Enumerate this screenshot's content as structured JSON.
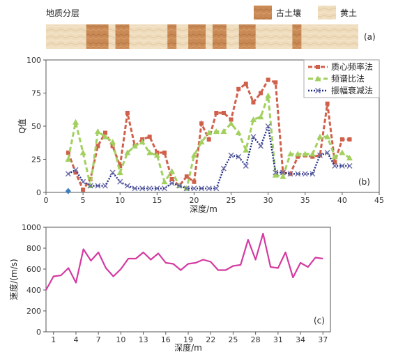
{
  "panel_a": {
    "title": "地质分层",
    "label": "(a)",
    "legend": [
      {
        "name": "古土壤",
        "color": "#c98a55"
      },
      {
        "name": "黄土",
        "color": "#ecd6b4"
      }
    ],
    "depth_range": [
      0,
      45
    ],
    "paleosol_intervals": [
      [
        5.8,
        9
      ],
      [
        10,
        12
      ],
      [
        17.5,
        18.8
      ],
      [
        20.5,
        23
      ],
      [
        24,
        26
      ],
      [
        27.8,
        30.2
      ],
      [
        35.5,
        36.8
      ]
    ]
  },
  "chart_data": [
    {
      "type": "line",
      "panel": "(b)",
      "xlabel": "深度/m",
      "ylabel": "Q值",
      "xlim": [
        0,
        45
      ],
      "ylim": [
        0,
        100
      ],
      "xticks": [
        0,
        5,
        10,
        15,
        20,
        25,
        30,
        35,
        40,
        45
      ],
      "yticks": [
        0,
        25,
        50,
        75,
        100
      ],
      "legend_position": "top-right",
      "series": [
        {
          "name": "质心频率法",
          "color": "#d0604a",
          "marker": "square",
          "x": [
            3,
            4,
            5,
            6,
            7,
            8,
            9,
            10,
            11,
            12,
            13,
            14,
            15,
            16,
            17,
            18,
            19,
            20,
            21,
            22,
            23,
            24,
            25,
            26,
            27,
            28,
            29,
            30,
            31,
            32,
            33,
            34,
            35,
            36,
            37,
            38,
            39,
            40,
            41
          ],
          "y": [
            30,
            15,
            2,
            10,
            35,
            45,
            35,
            20,
            60,
            35,
            40,
            42,
            30,
            30,
            10,
            5,
            12,
            8,
            52,
            40,
            60,
            60,
            55,
            78,
            82,
            68,
            75,
            85,
            83,
            15,
            14,
            27,
            28,
            27,
            28,
            67,
            23,
            40,
            40
          ]
        },
        {
          "name": "频谱比法",
          "color": "#a2d05f",
          "marker": "triangle",
          "x": [
            3,
            4,
            5,
            6,
            7,
            8,
            9,
            10,
            11,
            12,
            13,
            14,
            15,
            16,
            17,
            18,
            19,
            20,
            21,
            22,
            23,
            24,
            25,
            26,
            27,
            28,
            29,
            30,
            31,
            32,
            33,
            34,
            35,
            36,
            37,
            38,
            39,
            40,
            41
          ],
          "y": [
            25,
            53,
            30,
            5,
            46,
            42,
            38,
            15,
            30,
            35,
            38,
            30,
            28,
            8,
            16,
            5,
            3,
            28,
            38,
            45,
            46,
            46,
            52,
            45,
            32,
            55,
            57,
            73,
            13,
            12,
            29,
            29,
            29,
            29,
            42,
            42,
            27,
            30,
            26
          ]
        },
        {
          "name": "振幅衰减法",
          "color": "#1f2d8a",
          "marker": "x",
          "x": [
            3,
            4,
            5,
            6,
            7,
            8,
            9,
            10,
            11,
            12,
            13,
            14,
            15,
            16,
            17,
            18,
            19,
            20,
            21,
            22,
            23,
            24,
            25,
            26,
            27,
            28,
            29,
            30,
            31,
            32,
            33,
            34,
            35,
            36,
            37,
            38,
            39,
            40,
            41
          ],
          "y": [
            14,
            17,
            8,
            5,
            5,
            5,
            15,
            8,
            5,
            3,
            3,
            3,
            3,
            3,
            7,
            5,
            3,
            3,
            3,
            3,
            3,
            18,
            28,
            27,
            20,
            42,
            35,
            50,
            15,
            15,
            14,
            14,
            14,
            14,
            28,
            30,
            20,
            20,
            20
          ]
        }
      ],
      "extra_point": {
        "x": 3,
        "y": 1,
        "color": "#3a7fc2",
        "marker": "diamond"
      }
    },
    {
      "type": "line",
      "panel": "(c)",
      "xlabel": "深度/m",
      "ylabel": "速度/(m/s)",
      "xlim": [
        0,
        38
      ],
      "ylim": [
        0,
        1000
      ],
      "xticks": [
        1,
        4,
        7,
        10,
        13,
        16,
        19,
        22,
        25,
        28,
        31,
        34,
        37
      ],
      "yticks": [
        0,
        200,
        400,
        600,
        800,
        1000
      ],
      "series": [
        {
          "name": "",
          "color": "#d43aa0",
          "x": [
            0,
            1,
            2,
            3,
            4,
            5,
            6,
            7,
            8,
            9,
            10,
            11,
            12,
            13,
            14,
            15,
            16,
            17,
            18,
            19,
            20,
            21,
            22,
            23,
            24,
            25,
            26,
            27,
            28,
            29,
            30,
            31,
            32,
            33,
            34,
            35,
            36,
            37
          ],
          "y": [
            400,
            530,
            540,
            610,
            470,
            790,
            680,
            760,
            610,
            530,
            600,
            700,
            700,
            760,
            690,
            750,
            660,
            650,
            590,
            650,
            660,
            690,
            670,
            590,
            590,
            630,
            640,
            880,
            690,
            940,
            620,
            610,
            760,
            520,
            660,
            620,
            710,
            700
          ]
        }
      ]
    }
  ]
}
